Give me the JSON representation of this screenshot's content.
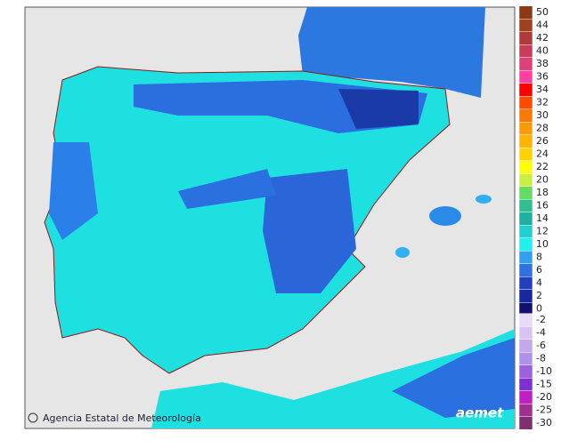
{
  "footer": {
    "agency": "Agencia Estatal de Meteorología",
    "logo": "aemet"
  },
  "legend": {
    "items": [
      {
        "label": "50",
        "color": "#8b3a13"
      },
      {
        "label": "44",
        "color": "#a0401e"
      },
      {
        "label": "42",
        "color": "#b03a3a"
      },
      {
        "label": "40",
        "color": "#c83c5a"
      },
      {
        "label": "38",
        "color": "#e0407a"
      },
      {
        "label": "36",
        "color": "#ff40a0"
      },
      {
        "label": "34",
        "color": "#ff0000"
      },
      {
        "label": "32",
        "color": "#ff4a00"
      },
      {
        "label": "30",
        "color": "#ff7800"
      },
      {
        "label": "28",
        "color": "#ff9a00"
      },
      {
        "label": "26",
        "color": "#ffb400"
      },
      {
        "label": "24",
        "color": "#ffd200"
      },
      {
        "label": "22",
        "color": "#ffff00"
      },
      {
        "label": "20",
        "color": "#c8f03c"
      },
      {
        "label": "18",
        "color": "#64dc64"
      },
      {
        "label": "16",
        "color": "#30c090"
      },
      {
        "label": "14",
        "color": "#20b0a0"
      },
      {
        "label": "12",
        "color": "#20d0d0"
      },
      {
        "label": "10",
        "color": "#20f0f0"
      },
      {
        "label": "8",
        "color": "#30a0f0"
      },
      {
        "label": "6",
        "color": "#3070e0"
      },
      {
        "label": "4",
        "color": "#2040c0"
      },
      {
        "label": "2",
        "color": "#1828a0"
      },
      {
        "label": "0",
        "color": "#101070"
      }
    ],
    "negative_items": [
      {
        "label": "-2",
        "color": "#e8dcf8"
      },
      {
        "label": "-4",
        "color": "#d8c4f4"
      },
      {
        "label": "-6",
        "color": "#c4a8ee"
      },
      {
        "label": "-8",
        "color": "#b090e8"
      },
      {
        "label": "-10",
        "color": "#9c60e0"
      },
      {
        "label": "-15",
        "color": "#8030d0"
      },
      {
        "label": "-20",
        "color": "#c020c0"
      },
      {
        "label": "-25",
        "color": "#a03090"
      },
      {
        "label": "-30",
        "color": "#803070"
      }
    ]
  }
}
